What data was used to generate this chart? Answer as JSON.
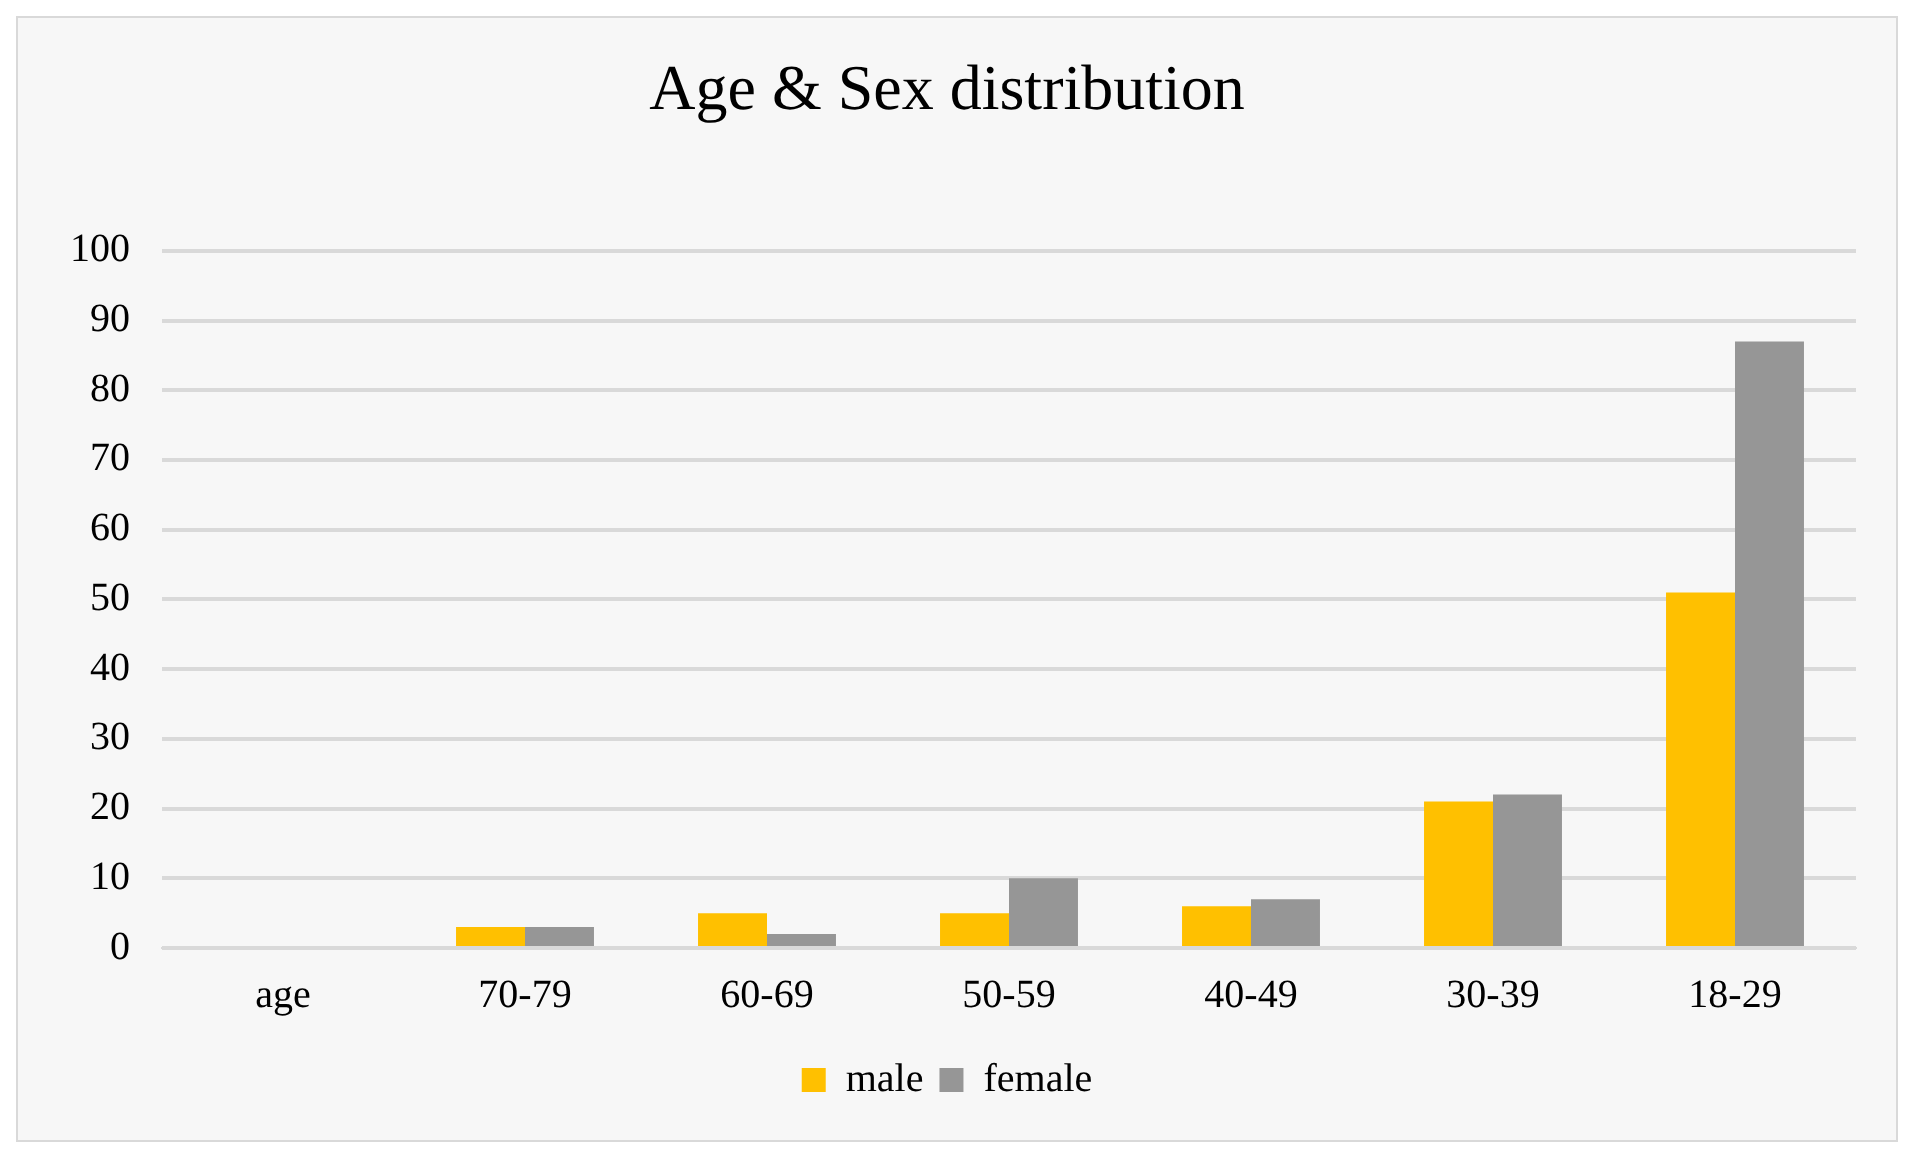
{
  "chart_data": {
    "type": "bar",
    "title": "Age & Sex distribution",
    "categories": [
      "age",
      "70-79",
      "60-69",
      "50-59",
      "40-49",
      "30-39",
      "18-29"
    ],
    "series": [
      {
        "name": "male",
        "color": "#ffc000",
        "values": [
          null,
          3,
          5,
          5,
          6,
          21,
          51
        ]
      },
      {
        "name": "female",
        "color": "#969696",
        "values": [
          null,
          3,
          2,
          10,
          7,
          22,
          87
        ]
      }
    ],
    "ylim": [
      0,
      100
    ],
    "yticks": [
      0,
      10,
      20,
      30,
      40,
      50,
      60,
      70,
      80,
      90,
      100
    ],
    "grid": "y",
    "legend": "bottom"
  }
}
